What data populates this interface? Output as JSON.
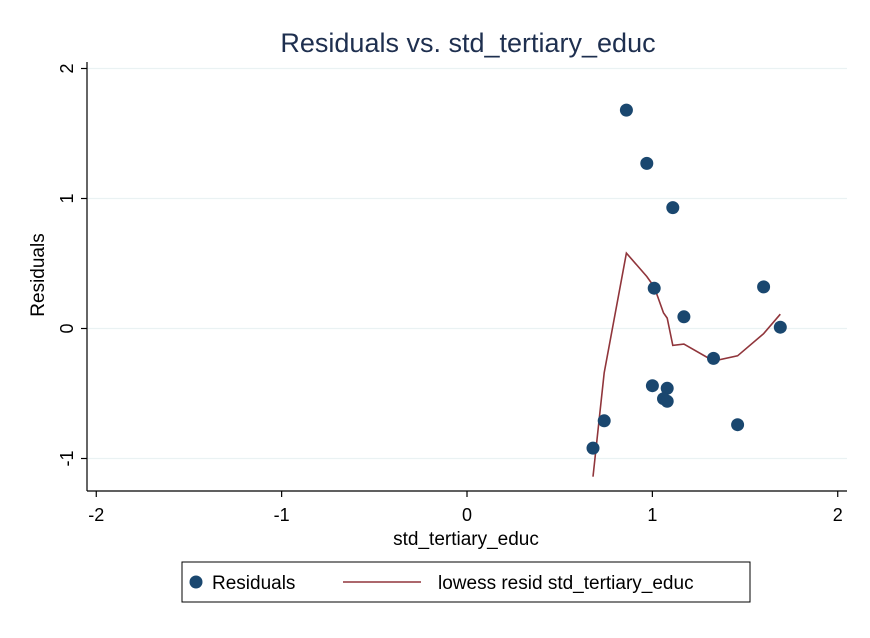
{
  "chart_data": {
    "type": "scatter",
    "title": "Residuals vs. std_tertiary_educ",
    "xlabel": "std_tertiary_educ",
    "ylabel": "Residuals",
    "xlim": [
      -2.05,
      2.05
    ],
    "ylim": [
      -1.25,
      2.05
    ],
    "xticks": [
      -2,
      -1,
      0,
      1,
      2
    ],
    "xtick_labels": [
      "-2",
      "-1",
      "0",
      "1",
      "2"
    ],
    "yticks": [
      -1,
      0,
      1,
      2
    ],
    "ytick_labels": [
      "-1",
      "0",
      "1",
      "2"
    ],
    "grid": true,
    "legend_position": "bottom",
    "series": [
      {
        "name": "Residuals",
        "kind": "scatter",
        "color": "#1a476f",
        "points": [
          {
            "x": 0.86,
            "y": 1.68
          },
          {
            "x": 0.97,
            "y": 1.27
          },
          {
            "x": 1.11,
            "y": 0.93
          },
          {
            "x": 1.01,
            "y": 0.31
          },
          {
            "x": 1.6,
            "y": 0.32
          },
          {
            "x": 1.17,
            "y": 0.09
          },
          {
            "x": 1.69,
            "y": 0.01
          },
          {
            "x": 1.33,
            "y": -0.23
          },
          {
            "x": 1.0,
            "y": -0.44
          },
          {
            "x": 1.08,
            "y": -0.46
          },
          {
            "x": 1.06,
            "y": -0.54
          },
          {
            "x": 1.08,
            "y": -0.56
          },
          {
            "x": 1.46,
            "y": -0.74
          },
          {
            "x": 0.74,
            "y": -0.71
          },
          {
            "x": 0.68,
            "y": -0.92
          }
        ]
      },
      {
        "name": "lowess resid std_tertiary_educ",
        "kind": "line",
        "color": "#90353b",
        "points": [
          {
            "x": 0.68,
            "y": -1.14
          },
          {
            "x": 0.74,
            "y": -0.34
          },
          {
            "x": 0.86,
            "y": 0.58
          },
          {
            "x": 0.97,
            "y": 0.4
          },
          {
            "x": 1.01,
            "y": 0.32
          },
          {
            "x": 1.06,
            "y": 0.12
          },
          {
            "x": 1.08,
            "y": 0.08
          },
          {
            "x": 1.11,
            "y": -0.13
          },
          {
            "x": 1.17,
            "y": -0.12
          },
          {
            "x": 1.33,
            "y": -0.25
          },
          {
            "x": 1.46,
            "y": -0.21
          },
          {
            "x": 1.6,
            "y": -0.04
          },
          {
            "x": 1.69,
            "y": 0.11
          }
        ]
      }
    ]
  }
}
